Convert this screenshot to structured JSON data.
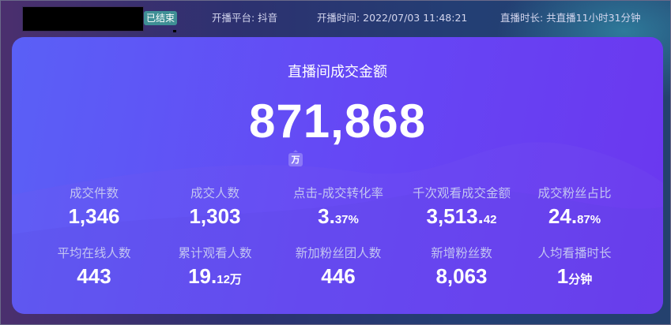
{
  "header": {
    "status_badge": "已结束",
    "platform": "开播平台: 抖音",
    "start_time": "开播时间: 2022/07/03 11:48:21",
    "duration": "直播时长: 共直播11小时31分钟"
  },
  "card": {
    "title": "直播间成交金额",
    "amount": "871,868",
    "amount_unit": "万"
  },
  "metrics": [
    {
      "label": "成交件数",
      "value": "1,346",
      "suffix": ""
    },
    {
      "label": "成交人数",
      "value": "1,303",
      "suffix": ""
    },
    {
      "label": "点击-成交转化率",
      "value": "3.",
      "suffix": "37%"
    },
    {
      "label": "千次观看成交金额",
      "value": "3,513.",
      "suffix": "42"
    },
    {
      "label": "成交粉丝占比",
      "value": "24.",
      "suffix": "87%"
    },
    {
      "label": "平均在线人数",
      "value": "443",
      "suffix": ""
    },
    {
      "label": "累计观看人数",
      "value": "19.",
      "suffix": "12万"
    },
    {
      "label": "新加粉丝团人数",
      "value": "446",
      "suffix": ""
    },
    {
      "label": "新增粉丝数",
      "value": "8,063",
      "suffix": ""
    },
    {
      "label": "人均看播时长",
      "value": "1",
      "suffix": "分钟"
    }
  ]
}
